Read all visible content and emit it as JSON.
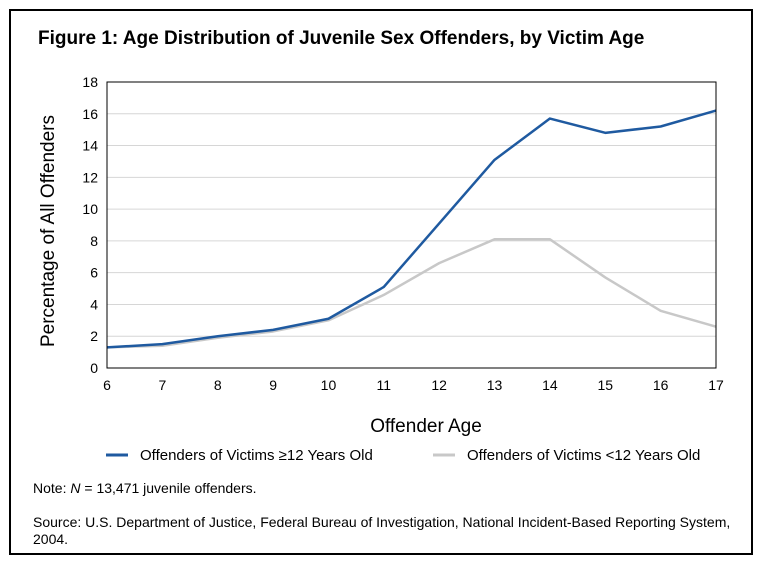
{
  "figure": {
    "title": "Figure 1: Age Distribution of Juvenile Sex Offenders, by Victim Age",
    "note_prefix": "Note: ",
    "note_var": "N",
    "note_text": " = 13,471 juvenile offenders.",
    "source": "Source: U.S. Department of Justice, Federal Bureau of Investigation, National Incident-Based Reporting System, 2004."
  },
  "chart_data": {
    "type": "line",
    "x": [
      6,
      7,
      8,
      9,
      10,
      11,
      12,
      13,
      14,
      15,
      16,
      17
    ],
    "xlabel": "Offender Age",
    "ylabel": "Percentage of All Offenders",
    "xlim": [
      6,
      17
    ],
    "ylim": [
      0,
      18
    ],
    "yticks": [
      0,
      2,
      4,
      6,
      8,
      10,
      12,
      14,
      16,
      18
    ],
    "grid": true,
    "legend": "bottom",
    "series": [
      {
        "name": "Offenders of Victims ≥12 Years Old",
        "color": "#1f5aa0",
        "values": [
          1.3,
          1.5,
          2.0,
          2.4,
          3.1,
          5.1,
          9.1,
          13.1,
          15.7,
          14.8,
          15.2,
          16.2
        ]
      },
      {
        "name": "Offenders of Victims <12 Years Old",
        "color": "#c8c8c8",
        "values": [
          1.3,
          1.4,
          1.9,
          2.3,
          3.0,
          4.6,
          6.6,
          8.1,
          8.1,
          5.7,
          3.6,
          2.6
        ]
      }
    ]
  }
}
